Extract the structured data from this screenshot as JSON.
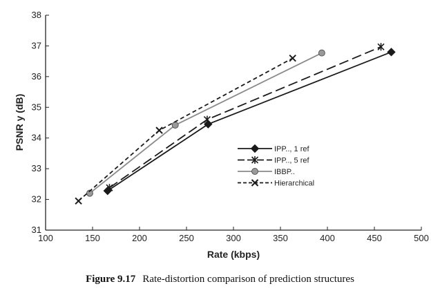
{
  "caption": {
    "figure_number": "Figure 9.17",
    "text": "Rate-distortion comparison of prediction structures"
  },
  "chart_data": {
    "type": "line",
    "title": "",
    "xlabel": "Rate (kbps)",
    "ylabel": "PSNR y (dB)",
    "xlim": [
      100,
      500
    ],
    "ylim": [
      31,
      38
    ],
    "xticks": [
      100,
      150,
      200,
      250,
      300,
      350,
      400,
      450,
      500
    ],
    "yticks": [
      31,
      32,
      33,
      34,
      35,
      36,
      37,
      38
    ],
    "grid": false,
    "legend_position": "center-right",
    "series": [
      {
        "name": "IPP.., 1 ref",
        "marker": "diamond",
        "line": "solid",
        "color": "#1a1a1a",
        "x": [
          166,
          273,
          468
        ],
        "y": [
          32.28,
          34.45,
          36.8
        ]
      },
      {
        "name": "IPP.., 5 ref",
        "marker": "asterisk",
        "line": "dashed",
        "color": "#1a1a1a",
        "x": [
          168,
          272,
          457
        ],
        "y": [
          32.38,
          34.6,
          36.97
        ]
      },
      {
        "name": "IBBP..",
        "marker": "circle",
        "line": "solid",
        "color": "#8a8a8a",
        "x": [
          147,
          238,
          394
        ],
        "y": [
          32.2,
          34.42,
          36.77
        ]
      },
      {
        "name": "Hierarchical",
        "marker": "x",
        "line": "short-dashed",
        "color": "#1a1a1a",
        "x": [
          135,
          221,
          363
        ],
        "y": [
          31.95,
          34.25,
          36.6
        ]
      }
    ]
  }
}
